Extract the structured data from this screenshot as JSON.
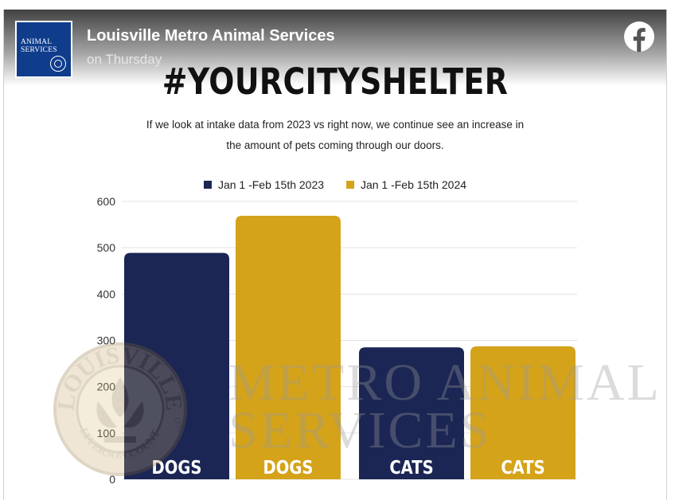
{
  "post": {
    "org_name": "Louisville Metro Animal Services",
    "time": "on Thursday",
    "logo_text": [
      "ANIMAL",
      "SERVICES"
    ]
  },
  "icons": {
    "social": "facebook-icon"
  },
  "graphic": {
    "headline": "#YOURCITYSHELTER",
    "subtitle_line1": "If we look at intake data from 2023 vs right now, we continue see an increase in",
    "subtitle_line2": "the amount of pets coming through our doors.",
    "watermark": {
      "seal_top": "LOUISVILLE",
      "seal_bottom": "JEFFERSON COUNTY",
      "seal_year": "1778",
      "line1": "METRO ANIMAL",
      "line2": "SERVICES"
    }
  },
  "colors": {
    "series_2023": "#1b2654",
    "series_2024": "#d4a31a",
    "grid": "#e3e3e3",
    "fb_blue": "#ffffff"
  },
  "chart_data": {
    "type": "bar",
    "legend_position": "top",
    "grid": true,
    "ylim": [
      0,
      600
    ],
    "yticks": [
      "0",
      "100",
      "200",
      "300",
      "400",
      "500",
      "600"
    ],
    "categories": [
      "DOGS",
      "CATS"
    ],
    "series": [
      {
        "name": "Jan 1 -Feb 15th 2023",
        "values": [
          489,
          285
        ]
      },
      {
        "name": "Jan 1 -Feb 15th 2024",
        "values": [
          569,
          287
        ]
      }
    ],
    "bar_labels": [
      "DOGS",
      "DOGS",
      "CATS",
      "CATS"
    ]
  }
}
